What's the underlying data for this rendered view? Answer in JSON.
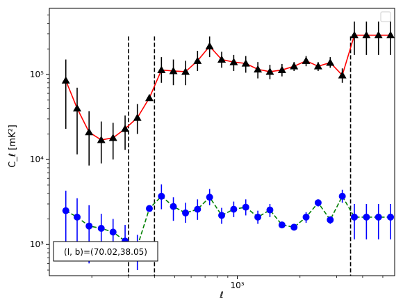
{
  "chart_data": {
    "type": "line",
    "xlabel": "ℓ",
    "ylabel": "C_ℓ [mK²]",
    "xscale": "log",
    "yscale": "log",
    "xlim": [
      125,
      5700
    ],
    "ylim": [
      430,
      600000
    ],
    "x_ticks": [
      {
        "value": 1000,
        "label": "10³"
      }
    ],
    "y_ticks": [
      {
        "value": 1000,
        "label": "10³"
      },
      {
        "value": 10000,
        "label": "10⁴"
      },
      {
        "value": 100000,
        "label": "10⁵"
      }
    ],
    "vlines": [
      300,
      400,
      3500
    ],
    "annotation": "(l, b)=(70.02,38.05)",
    "legend": "top-right",
    "grid": false,
    "series": [
      {
        "color": "#ff0000",
        "marker": "triangle",
        "marker_color": "#000000",
        "errorbar_color": "#000000",
        "linestyle": "solid",
        "x": [
          150,
          170,
          194,
          222,
          253,
          289,
          331,
          378,
          432,
          493,
          564,
          644,
          736,
          841,
          961,
          1098,
          1255,
          1434,
          1639,
          1873,
          2140,
          2445,
          2795,
          3194,
          3650,
          4171,
          4766,
          5446
        ],
        "y": [
          85000,
          40000,
          21000,
          17000,
          18000,
          23000,
          31000,
          53000,
          113000,
          110000,
          108000,
          145000,
          215000,
          150000,
          140000,
          135000,
          115000,
          108000,
          113000,
          125000,
          145000,
          125000,
          138000,
          98000,
          290000,
          290000,
          290000,
          290000
        ],
        "y_low": [
          23000,
          11500,
          8500,
          9000,
          10000,
          13000,
          20000,
          50000,
          80000,
          75000,
          75000,
          110000,
          160000,
          120000,
          110000,
          105000,
          90000,
          88000,
          95000,
          110000,
          125000,
          110000,
          120000,
          80000,
          170000,
          170000,
          170000,
          170000
        ],
        "y_high": [
          150000,
          70000,
          37000,
          28000,
          27000,
          33000,
          45000,
          57000,
          160000,
          150000,
          145000,
          190000,
          280000,
          185000,
          170000,
          165000,
          140000,
          130000,
          133000,
          140000,
          165000,
          140000,
          160000,
          118000,
          420000,
          420000,
          420000,
          420000
        ]
      },
      {
        "color": "#008000",
        "marker": "circle",
        "marker_color": "#0000ff",
        "errorbar_color": "#0000ff",
        "linestyle": "dashed",
        "x": [
          150,
          170,
          194,
          222,
          253,
          289,
          331,
          378,
          432,
          493,
          564,
          644,
          736,
          841,
          961,
          1098,
          1255,
          1434,
          1639,
          1873,
          2140,
          2445,
          2795,
          3194,
          3650,
          4171,
          4766,
          5446
        ],
        "y": [
          2500,
          2100,
          1650,
          1550,
          1400,
          1100,
          950,
          2650,
          3700,
          2800,
          2350,
          2600,
          3600,
          2200,
          2600,
          2750,
          2100,
          2550,
          1700,
          1600,
          2100,
          3100,
          1950,
          3700,
          2100,
          2100,
          2100,
          2100
        ],
        "y_low": [
          750,
          1000,
          600,
          750,
          800,
          650,
          500,
          2600,
          2600,
          1900,
          1800,
          1950,
          2900,
          1750,
          2100,
          2200,
          1750,
          2100,
          1550,
          1500,
          1800,
          2800,
          1750,
          3100,
          1150,
          1150,
          1150,
          1150
        ],
        "y_high": [
          4300,
          3500,
          2900,
          2300,
          2000,
          1700,
          1300,
          2700,
          5100,
          3600,
          3100,
          3400,
          4500,
          2700,
          3200,
          3400,
          2500,
          3000,
          1850,
          1700,
          2400,
          3400,
          2150,
          4400,
          3000,
          3000,
          3000,
          3000
        ]
      }
    ]
  }
}
